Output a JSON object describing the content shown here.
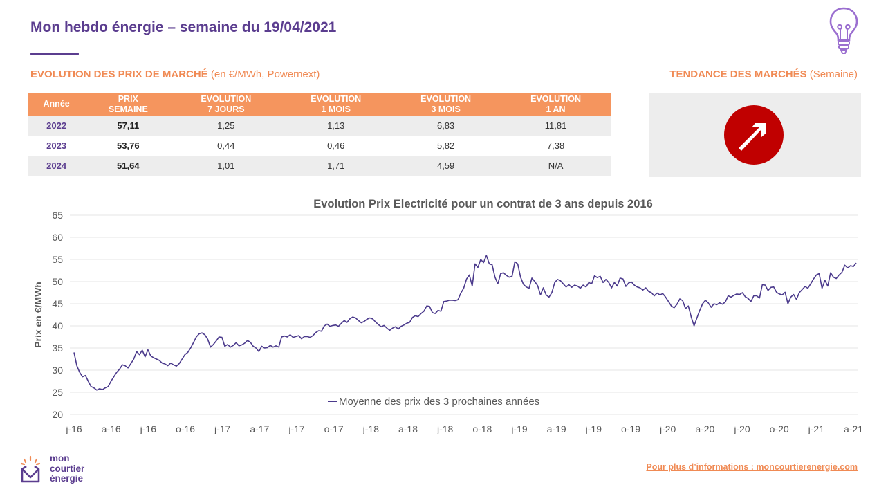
{
  "header": {
    "title": "Mon hebdo énergie – semaine du 19/04/2021"
  },
  "market": {
    "heading_bold": "EVOLUTION DES PRIX DE MARCHÉ",
    "heading_rest": " (en €/MWh, Powernext)",
    "columns": [
      [
        "Année"
      ],
      [
        "PRIX",
        "SEMAINE"
      ],
      [
        "EVOLUTION",
        "7 JOURS"
      ],
      [
        "EVOLUTION",
        "1 MOIS"
      ],
      [
        "EVOLUTION",
        "3 MOIS"
      ],
      [
        "EVOLUTION",
        "1 AN"
      ]
    ],
    "rows": [
      [
        "2022",
        "57,11",
        "1,25",
        "1,13",
        "6,83",
        "11,81"
      ],
      [
        "2023",
        "53,76",
        "0,44",
        "0,46",
        "5,82",
        "7,38"
      ],
      [
        "2024",
        "51,64",
        "1,01",
        "1,71",
        "4,59",
        "N/A"
      ]
    ]
  },
  "trend": {
    "heading_bold": "TENDANCE DES MARCHÉS",
    "heading_rest": " (Semaine)",
    "direction": "up",
    "color": "#c00000",
    "icon": "arrow-up-right-icon"
  },
  "chart_data": {
    "type": "line",
    "title": "Evolution Prix Electricité pour un contrat de 3 ans depuis 2016",
    "ylabel": "Prix en €/MWh",
    "xlabel": "",
    "ylim": [
      20,
      65
    ],
    "yticks": [
      20,
      25,
      30,
      35,
      40,
      45,
      50,
      55,
      60,
      65
    ],
    "xticks": [
      "j-16",
      "a-16",
      "j-16",
      "o-16",
      "j-17",
      "a-17",
      "j-17",
      "o-17",
      "j-18",
      "a-18",
      "j-18",
      "o-18",
      "j-19",
      "a-19",
      "j-19",
      "o-19",
      "j-20",
      "a-20",
      "j-20",
      "o-20",
      "j-21",
      "a-21"
    ],
    "grid": true,
    "legend_position": "bottom",
    "series": [
      {
        "name": "Moyenne des prix des 3 prochaines années",
        "color": "#4b3a8c",
        "values": [
          34.0,
          31.0,
          29.5,
          28.5,
          28.8,
          27.5,
          26.3,
          26.0,
          25.5,
          25.8,
          25.6,
          26.0,
          26.3,
          27.5,
          28.5,
          29.5,
          30.2,
          31.2,
          31.0,
          30.5,
          31.5,
          32.5,
          34.2,
          33.5,
          34.5,
          33.0,
          34.6,
          33.2,
          32.8,
          32.5,
          32.2,
          31.6,
          31.4,
          31.0,
          31.6,
          31.2,
          30.9,
          31.5,
          32.5,
          33.5,
          34.0,
          35.0,
          36.2,
          37.5,
          38.2,
          38.4,
          38.0,
          37.0,
          35.2,
          35.8,
          36.6,
          37.5,
          37.4,
          35.4,
          35.8,
          35.2,
          35.6,
          36.2,
          35.5,
          35.7,
          36.1,
          36.7,
          36.3,
          35.4,
          35.0,
          34.2,
          35.4,
          35.0,
          35.1,
          35.6,
          35.2,
          35.5,
          35.2,
          37.5,
          37.7,
          37.5,
          38.0,
          37.4,
          37.6,
          37.8,
          37.1,
          37.6,
          37.6,
          37.4,
          37.8,
          38.5,
          38.9,
          38.8,
          40.0,
          40.4,
          39.9,
          40.1,
          40.2,
          39.9,
          40.6,
          41.2,
          40.8,
          41.6,
          42.0,
          41.8,
          41.2,
          40.7,
          41.0,
          41.5,
          41.8,
          41.6,
          40.9,
          40.3,
          39.8,
          40.1,
          39.5,
          39.0,
          39.5,
          39.8,
          39.3,
          39.9,
          40.2,
          40.6,
          40.8,
          41.9,
          42.3,
          42.1,
          42.8,
          43.3,
          44.5,
          44.4,
          43.0,
          42.8,
          43.5,
          43.3,
          45.5,
          45.6,
          45.8,
          45.8,
          45.7,
          45.9,
          47.4,
          48.5,
          50.6,
          51.5,
          49.0,
          54.0,
          53.2,
          55.0,
          54.3,
          55.9,
          54.0,
          53.8,
          51.0,
          49.5,
          51.8,
          52.0,
          51.4,
          51.0,
          51.2,
          54.5,
          54.0,
          51.0,
          49.4,
          48.8,
          48.5,
          50.8,
          50.0,
          49.1,
          47.0,
          48.6,
          47.0,
          46.5,
          47.5,
          49.8,
          50.5,
          50.2,
          49.5,
          48.8,
          49.3,
          48.7,
          49.2,
          49.0,
          48.5,
          49.2,
          48.8,
          49.8,
          49.5,
          51.3,
          50.9,
          51.2,
          49.8,
          50.5,
          49.8,
          48.6,
          49.8,
          49.0,
          50.8,
          50.6,
          48.9,
          49.7,
          49.9,
          49.2,
          48.8,
          48.6,
          48.1,
          48.6,
          47.8,
          47.5,
          46.8,
          47.4,
          47.0,
          47.3,
          46.5,
          45.5,
          44.5,
          44.1,
          44.9,
          46.1,
          45.7,
          43.9,
          44.5,
          42.0,
          40.0,
          41.8,
          43.5,
          45.0,
          45.8,
          45.2,
          44.2,
          45.0,
          44.8,
          45.2,
          44.9,
          45.4,
          46.8,
          46.5,
          46.9,
          47.2,
          47.1,
          47.5,
          46.6,
          46.2,
          45.5,
          46.8,
          46.8,
          46.3,
          49.3,
          49.2,
          48.0,
          48.7,
          48.8,
          47.6,
          47.2,
          47.0,
          47.6,
          45.0,
          46.5,
          47.1,
          46.0,
          47.5,
          48.2,
          48.9,
          48.5,
          49.5,
          50.6,
          51.5,
          51.8,
          48.5,
          50.3,
          49.0,
          52.0,
          51.0,
          50.7,
          51.5,
          52.1,
          53.7,
          53.1,
          53.6,
          53.4,
          54.2
        ]
      }
    ]
  },
  "footer": {
    "link_text": "Pour plus d’informations : moncourtierenergie.com",
    "logo_lines": [
      "mon",
      "courtier",
      "énergie"
    ]
  },
  "colors": {
    "brand_purple": "#5b3d8f",
    "accent_orange": "#f08a54",
    "table_header": "#f5955e",
    "line": "#4b3a8c"
  }
}
